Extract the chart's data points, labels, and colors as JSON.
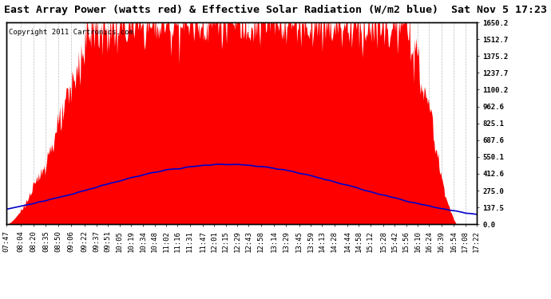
{
  "title": "East Array Power (watts red) & Effective Solar Radiation (W/m2 blue)  Sat Nov 5 17:23",
  "copyright": "Copyright 2011 Cartronics.com",
  "yticks_right": [
    0.0,
    137.5,
    275.0,
    412.6,
    550.1,
    687.6,
    825.1,
    962.6,
    1100.2,
    1237.7,
    1375.2,
    1512.7,
    1650.2
  ],
  "ymax": 1650.2,
  "ymin": 0.0,
  "fill_color": "#ff0000",
  "line_color": "#0000cc",
  "background_color": "#ffffff",
  "grid_color": "#aaaaaa",
  "title_fontsize": 9.5,
  "copyright_fontsize": 6.5,
  "tick_fontsize": 6.5,
  "xtick_labels": [
    "07:47",
    "08:04",
    "08:20",
    "08:35",
    "08:50",
    "09:06",
    "09:22",
    "09:37",
    "09:51",
    "10:05",
    "10:19",
    "10:34",
    "10:48",
    "11:02",
    "11:16",
    "11:31",
    "11:47",
    "12:01",
    "12:15",
    "12:29",
    "12:43",
    "12:58",
    "13:14",
    "13:29",
    "13:45",
    "13:59",
    "14:13",
    "14:28",
    "14:44",
    "14:58",
    "15:12",
    "15:28",
    "15:42",
    "15:56",
    "16:10",
    "16:24",
    "16:39",
    "16:54",
    "17:08",
    "17:22"
  ]
}
